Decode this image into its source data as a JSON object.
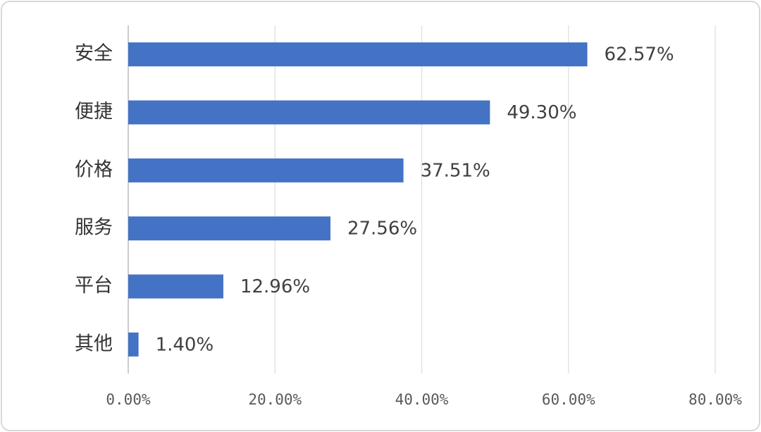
{
  "chart_data": {
    "type": "bar",
    "orientation": "horizontal",
    "categories": [
      "安全",
      "便捷",
      "价格",
      "服务",
      "平台",
      "其他"
    ],
    "values": [
      62.57,
      49.3,
      37.51,
      27.56,
      12.96,
      1.4
    ],
    "value_labels": [
      "62.57%",
      "49.30%",
      "37.51%",
      "27.56%",
      "12.96%",
      "1.40%"
    ],
    "color": "#4472c4",
    "xlim": [
      0,
      80
    ],
    "xticks": [
      {
        "value": 0,
        "label": "0.00%"
      },
      {
        "value": 20,
        "label": "20.00%"
      },
      {
        "value": 40,
        "label": "40.00%"
      },
      {
        "value": 60,
        "label": "60.00%"
      },
      {
        "value": 80,
        "label": "80.00%"
      }
    ],
    "grid": true
  }
}
